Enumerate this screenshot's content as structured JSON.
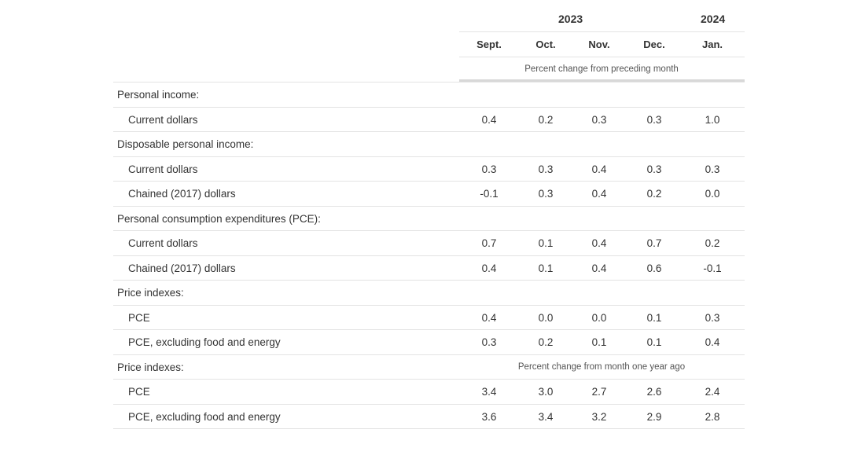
{
  "header": {
    "years": [
      "2023",
      "2024"
    ],
    "months": [
      "Sept.",
      "Oct.",
      "Nov.",
      "Dec.",
      "Jan."
    ],
    "subhead": "Percent change from preceding month"
  },
  "rows": [
    {
      "type": "section",
      "label": "Personal income:",
      "note": "",
      "values": []
    },
    {
      "type": "data",
      "label": "Current dollars",
      "values": [
        "0.4",
        "0.2",
        "0.3",
        "0.3",
        "1.0"
      ]
    },
    {
      "type": "section",
      "label": "Disposable personal income:",
      "note": "",
      "values": []
    },
    {
      "type": "data",
      "label": "Current dollars",
      "values": [
        "0.3",
        "0.3",
        "0.4",
        "0.3",
        "0.3"
      ]
    },
    {
      "type": "data",
      "label": "Chained (2017) dollars",
      "values": [
        "-0.1",
        "0.3",
        "0.4",
        "0.2",
        "0.0"
      ]
    },
    {
      "type": "section",
      "label": "Personal consumption expenditures (PCE):",
      "note": "",
      "values": []
    },
    {
      "type": "data",
      "label": "Current dollars",
      "values": [
        "0.7",
        "0.1",
        "0.4",
        "0.7",
        "0.2"
      ]
    },
    {
      "type": "data",
      "label": "Chained (2017) dollars",
      "values": [
        "0.4",
        "0.1",
        "0.4",
        "0.6",
        "-0.1"
      ]
    },
    {
      "type": "section",
      "label": "Price indexes:",
      "note": "",
      "values": []
    },
    {
      "type": "data",
      "label": "PCE",
      "values": [
        "0.4",
        "0.0",
        "0.0",
        "0.1",
        "0.3"
      ]
    },
    {
      "type": "data",
      "label": "PCE, excluding food and energy",
      "values": [
        "0.3",
        "0.2",
        "0.1",
        "0.1",
        "0.4"
      ]
    },
    {
      "type": "section",
      "label": "Price indexes:",
      "note": "Percent change from month one year ago",
      "values": []
    },
    {
      "type": "data",
      "label": "PCE",
      "values": [
        "3.4",
        "3.0",
        "2.7",
        "2.6",
        "2.4"
      ]
    },
    {
      "type": "data",
      "label": "PCE, excluding food and energy",
      "values": [
        "3.6",
        "3.4",
        "3.2",
        "2.9",
        "2.8"
      ]
    }
  ]
}
